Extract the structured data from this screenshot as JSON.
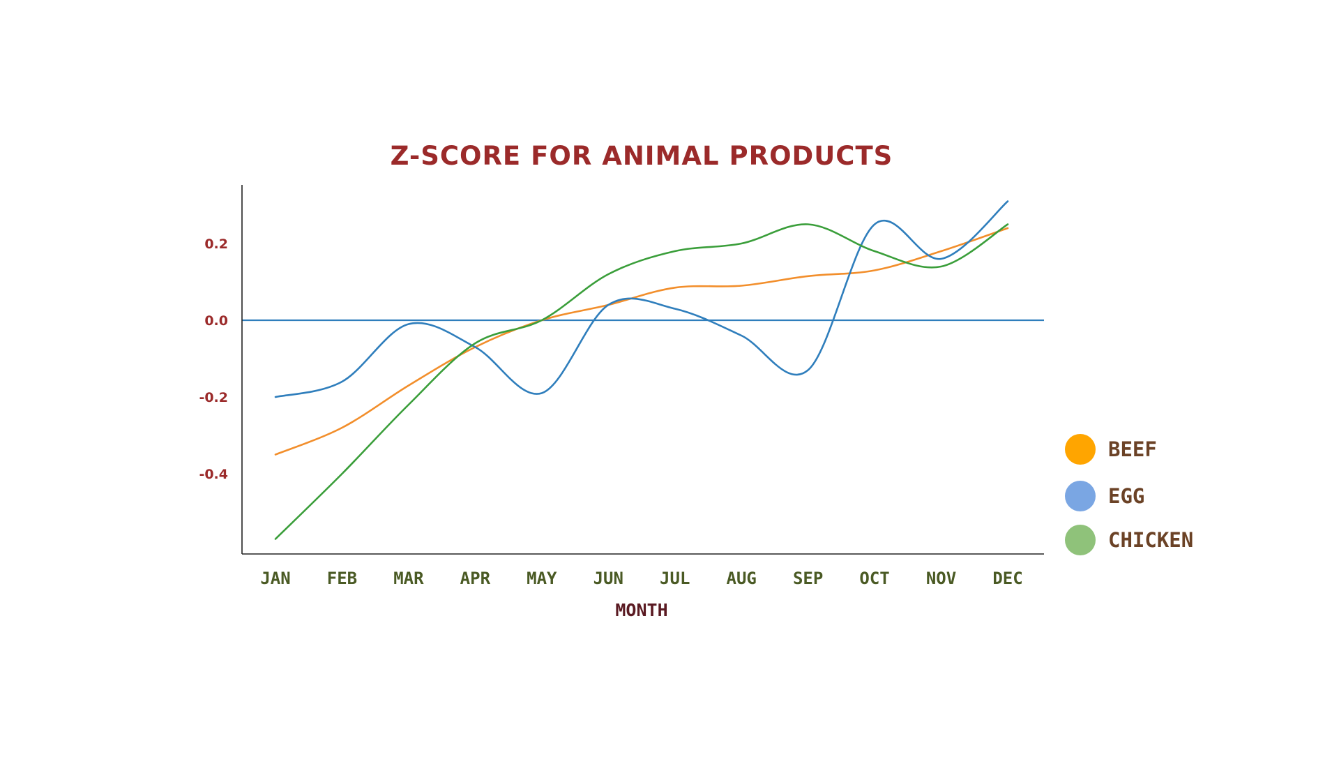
{
  "chart_data": {
    "type": "line",
    "title": "Z-SCORE FOR ANIMAL PRODUCTS",
    "xlabel": "MONTH",
    "ylabel": "",
    "categories": [
      "JAN",
      "FEB",
      "MAR",
      "APR",
      "MAY",
      "JUN",
      "JUL",
      "AUG",
      "SEP",
      "OCT",
      "NOV",
      "DEC"
    ],
    "yticks": [
      "0.2",
      "0.0",
      "-0.2",
      "-0.4"
    ],
    "ytick_values": [
      0.2,
      0.0,
      -0.2,
      -0.4
    ],
    "ylim": [
      -0.6,
      0.35
    ],
    "reference_line": 0.0,
    "legend_position": "right",
    "series": [
      {
        "name": "BEEF",
        "color": "#f28e2b",
        "legend_color": "#ffa500",
        "values": [
          -0.35,
          -0.28,
          -0.17,
          -0.07,
          0.0,
          0.04,
          0.085,
          0.09,
          0.115,
          0.13,
          0.18,
          0.24
        ]
      },
      {
        "name": "EGG",
        "color": "#2f7ebc",
        "legend_color": "#7aa6e3",
        "values": [
          -0.2,
          -0.16,
          -0.01,
          -0.07,
          -0.19,
          0.04,
          0.03,
          -0.04,
          -0.13,
          0.25,
          0.16,
          0.31
        ]
      },
      {
        "name": "CHICKEN",
        "color": "#3a9e3a",
        "legend_color": "#8fc27a",
        "values": [
          -0.57,
          -0.4,
          -0.22,
          -0.06,
          0.0,
          0.12,
          0.18,
          0.2,
          0.25,
          0.18,
          0.14,
          0.25
        ]
      }
    ]
  }
}
